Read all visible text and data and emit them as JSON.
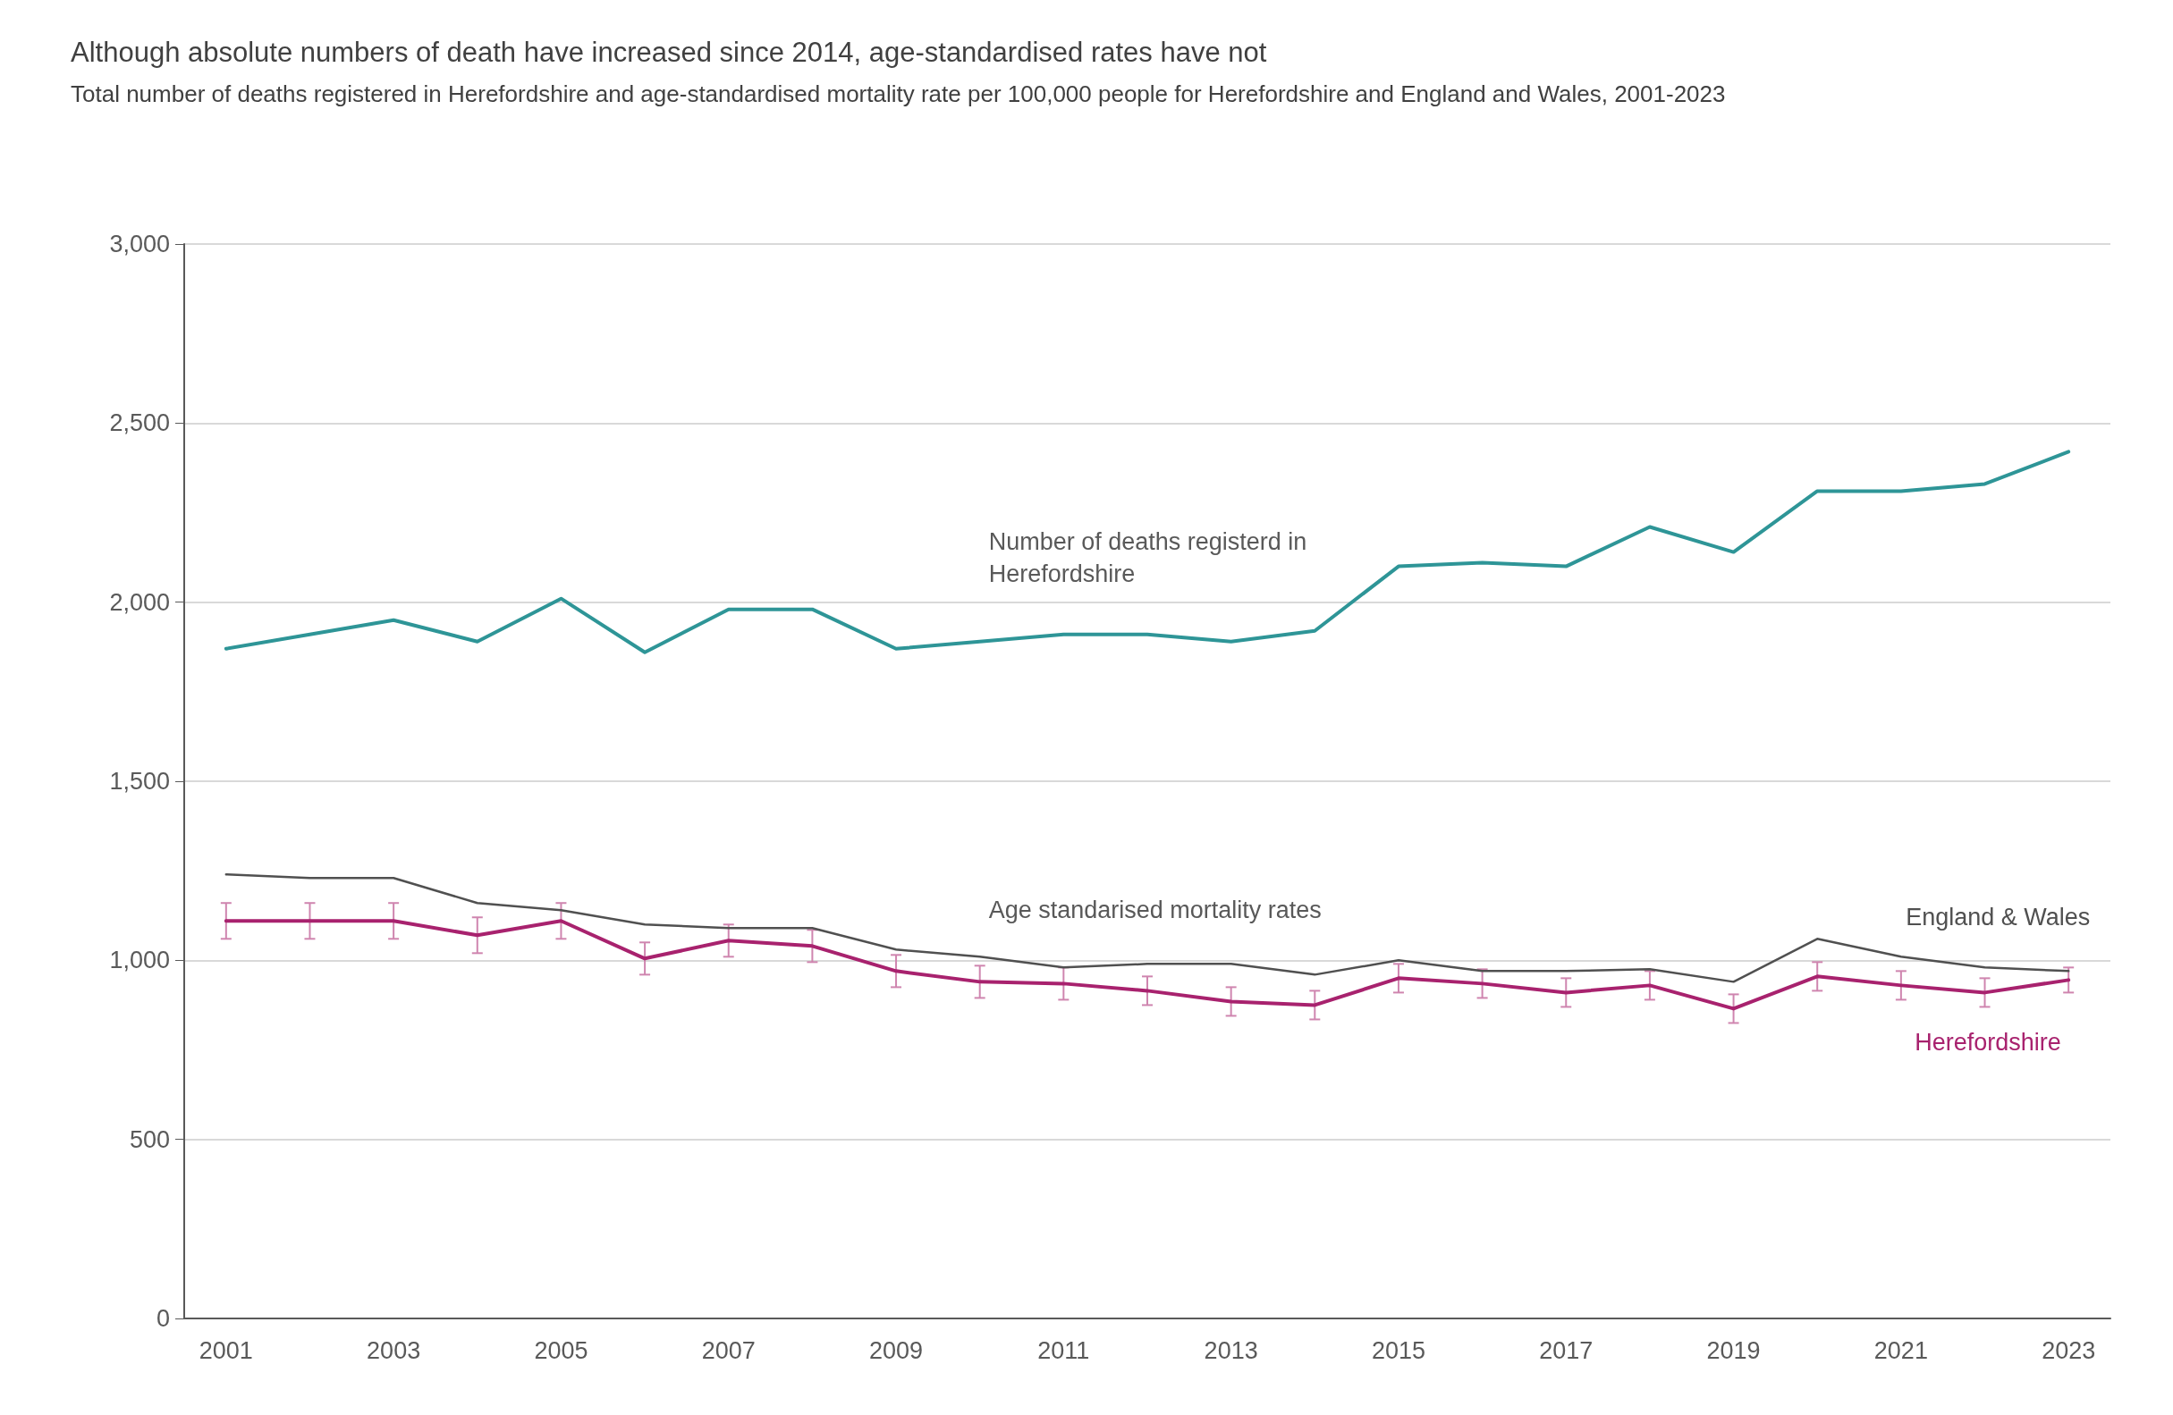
{
  "chart_data": {
    "type": "line",
    "title": "Although absolute numbers of death have increased since 2014, age-standardised rates have not",
    "subtitle": "Total number of deaths registered in Herefordshire and age-standardised mortality rate per 100,000 people for Herefordshire and England and Wales, 2001-2023",
    "x": [
      2001,
      2002,
      2003,
      2004,
      2005,
      2006,
      2007,
      2008,
      2009,
      2010,
      2011,
      2012,
      2013,
      2014,
      2015,
      2016,
      2017,
      2018,
      2019,
      2020,
      2021,
      2022,
      2023
    ],
    "xlim": [
      2000.5,
      2023.5
    ],
    "xticks": [
      2001,
      2003,
      2005,
      2007,
      2009,
      2011,
      2013,
      2015,
      2017,
      2019,
      2021,
      2023
    ],
    "ylim": [
      0,
      3000
    ],
    "yticks": [
      {
        "value": 0,
        "label": "0"
      },
      {
        "value": 500,
        "label": "500"
      },
      {
        "value": 1000,
        "label": "1,000"
      },
      {
        "value": 1500,
        "label": "1,500"
      },
      {
        "value": 2000,
        "label": "2,000"
      },
      {
        "value": 2500,
        "label": "2,500"
      },
      {
        "value": 3000,
        "label": "3,000"
      }
    ],
    "grid": "y",
    "legend": false,
    "marker": "none",
    "line_style": "solid",
    "series": [
      {
        "color": "#2e9597",
        "values": [
          1870,
          1910,
          1950,
          1890,
          2010,
          1860,
          1980,
          1980,
          1870,
          1890,
          1910,
          1910,
          1890,
          1920,
          2100,
          2110,
          2100,
          2210,
          2140,
          2310,
          2310,
          2330,
          2420
        ]
      },
      {
        "name": "England & Wales",
        "color": "#505050",
        "values": [
          1240,
          1230,
          1230,
          1160,
          1140,
          1100,
          1090,
          1090,
          1030,
          1010,
          980,
          990,
          990,
          960,
          1000,
          970,
          970,
          975,
          940,
          1060,
          1010,
          980,
          970
        ]
      },
      {
        "name": "Herefordshire",
        "color": "#a8226e",
        "values": [
          1110,
          1110,
          1110,
          1070,
          1110,
          1005,
          1055,
          1040,
          970,
          940,
          935,
          915,
          885,
          875,
          950,
          935,
          910,
          930,
          865,
          955,
          930,
          910,
          945
        ],
        "errors": [
          50,
          50,
          50,
          50,
          50,
          45,
          45,
          45,
          45,
          45,
          45,
          40,
          40,
          40,
          40,
          40,
          40,
          40,
          40,
          40,
          40,
          40,
          35
        ]
      }
    ],
    "annotations": [
      "Number of deaths registerd in\nHerefordshire",
      "Age standarised mortality rates"
    ]
  }
}
